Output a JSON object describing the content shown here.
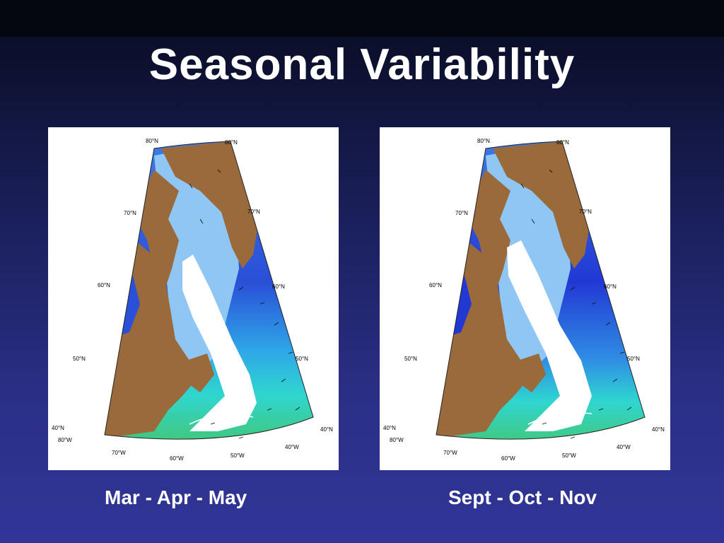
{
  "slide": {
    "title": "Seasonal Variability"
  },
  "maps": [
    {
      "caption": "Mar - Apr - May",
      "labels": {
        "lat80a": "80°N",
        "lat80b": "80°N",
        "lat70w": "70°N",
        "lat70e": "70°N",
        "lat60w": "60°N",
        "lat60e": "60°N",
        "lat50w": "50°N",
        "lat50e": "50°N",
        "lat40w": "40°N",
        "lat40e": "40°N",
        "lon80": "80°W",
        "lon70": "70°W",
        "lon60": "60°W",
        "lon50": "50°W",
        "lon40": "40°W"
      }
    },
    {
      "caption": "Sept - Oct - Nov",
      "labels": {
        "lat80a": "80°N",
        "lat80b": "80°N",
        "lat70w": "70°N",
        "lat70e": "70°N",
        "lat60w": "60°N",
        "lat60e": "60°N",
        "lat50w": "50°N",
        "lat50e": "50°N",
        "lat40w": "40°N",
        "lat40e": "40°N",
        "lon80": "80°W",
        "lon70": "70°W",
        "lon60": "60°W",
        "lon50": "50°W",
        "lon40": "40°W"
      }
    }
  ],
  "colors": {
    "land": "#9a6a3a",
    "ocean_deep": "#2233cc",
    "ocean_mid": "#3f7fe8",
    "ocean_light": "#9fd0f5",
    "ocean_cyan": "#2fd6d0",
    "ocean_green": "#4cbf4a",
    "ice_stream": "#ffffff"
  }
}
